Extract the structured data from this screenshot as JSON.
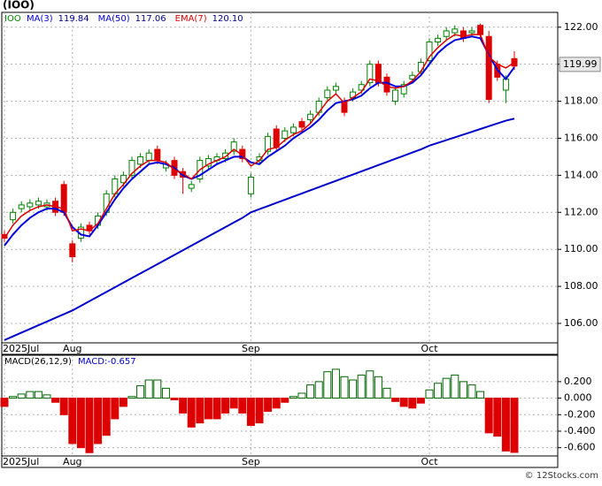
{
  "chart_data": [
    {
      "type": "candlestick",
      "title": "(IOO)",
      "symbol": "IOO",
      "categories": [
        "2025Jul",
        null,
        null,
        null,
        null,
        null,
        null,
        null,
        "Aug",
        null,
        null,
        null,
        null,
        null,
        null,
        null,
        null,
        null,
        null,
        null,
        null,
        null,
        null,
        null,
        null,
        null,
        null,
        null,
        null,
        "Sep",
        null,
        null,
        null,
        null,
        null,
        null,
        null,
        null,
        null,
        null,
        null,
        null,
        null,
        null,
        null,
        null,
        null,
        null,
        null,
        null,
        "Oct",
        null,
        null,
        null,
        null,
        null,
        null,
        null,
        null,
        null,
        null
      ],
      "open": [
        110.8,
        111.6,
        112.2,
        112.3,
        112.4,
        112.3,
        112.6,
        113.5,
        110.3,
        110.6,
        111.3,
        111.3,
        112.0,
        113.0,
        113.6,
        114.0,
        114.6,
        114.8,
        115.4,
        114.4,
        114.8,
        114.2,
        113.3,
        113.8,
        114.5,
        114.8,
        114.9,
        115.3,
        115.4,
        113.0,
        114.8,
        115.3,
        116.5,
        116.0,
        116.3,
        116.9,
        117.0,
        117.4,
        118.2,
        118.6,
        118.0,
        118.2,
        118.6,
        119.0,
        120.0,
        119.3,
        118.0,
        118.4,
        119.2,
        119.6,
        120.2,
        121.2,
        121.5,
        121.7,
        121.8,
        121.7,
        122.1,
        121.5,
        120.0,
        118.6,
        120.3
      ],
      "high": [
        111.0,
        112.2,
        112.6,
        112.7,
        112.8,
        112.7,
        112.8,
        113.7,
        110.5,
        111.4,
        111.5,
        112.0,
        113.2,
        114.0,
        114.2,
        115.0,
        115.2,
        115.4,
        115.6,
        114.8,
        115.0,
        114.4,
        113.7,
        115.0,
        115.1,
        115.2,
        115.4,
        116.0,
        115.6,
        114.1,
        115.2,
        116.3,
        116.7,
        116.6,
        116.8,
        117.1,
        117.5,
        118.2,
        118.8,
        119.0,
        118.2,
        118.7,
        119.1,
        120.2,
        120.2,
        119.5,
        118.8,
        119.1,
        119.6,
        120.3,
        121.4,
        121.6,
        122.0,
        122.1,
        122.0,
        122.0,
        122.2,
        121.8,
        120.2,
        119.4,
        120.7
      ],
      "low": [
        110.4,
        111.4,
        112.0,
        112.1,
        112.2,
        112.1,
        111.8,
        111.8,
        109.3,
        110.4,
        110.8,
        111.1,
        111.8,
        112.8,
        113.4,
        113.8,
        114.4,
        114.6,
        114.6,
        114.2,
        113.8,
        113.0,
        113.1,
        113.6,
        114.3,
        114.6,
        114.7,
        115.1,
        114.7,
        112.8,
        114.6,
        115.1,
        115.3,
        115.8,
        116.1,
        116.4,
        116.8,
        117.2,
        118.0,
        118.4,
        117.2,
        118.0,
        118.4,
        118.8,
        118.8,
        118.3,
        117.8,
        118.2,
        119.0,
        119.4,
        120.0,
        121.0,
        121.3,
        121.5,
        121.2,
        121.5,
        121.4,
        117.9,
        119.1,
        117.9,
        119.7
      ],
      "close": [
        110.6,
        112.0,
        112.4,
        112.5,
        112.6,
        112.5,
        112.0,
        112.0,
        109.6,
        111.2,
        111.0,
        111.8,
        113.0,
        113.8,
        114.0,
        114.8,
        115.0,
        115.2,
        114.8,
        114.6,
        114.0,
        113.9,
        113.5,
        114.8,
        114.9,
        115.0,
        115.2,
        115.8,
        114.9,
        113.9,
        115.0,
        116.1,
        115.5,
        116.4,
        116.6,
        116.6,
        117.3,
        118.0,
        118.6,
        118.8,
        117.4,
        118.5,
        118.9,
        120.0,
        119.0,
        118.5,
        118.6,
        118.9,
        119.4,
        120.1,
        121.2,
        121.4,
        121.8,
        121.9,
        121.4,
        121.8,
        121.6,
        118.1,
        119.3,
        119.2,
        119.9
      ],
      "up_color": "#008000",
      "down_color": "#dd0000",
      "series": [
        {
          "name": "MA(3)",
          "legend_label": "119.84",
          "color": "#0000dd",
          "values": [
            110.2,
            110.8,
            111.3,
            111.7,
            112.0,
            112.2,
            112.2,
            112.0,
            111.2,
            110.8,
            110.7,
            111.3,
            112.0,
            112.7,
            113.3,
            113.8,
            114.2,
            114.6,
            114.7,
            114.6,
            114.4,
            114.0,
            113.8,
            114.0,
            114.3,
            114.6,
            114.8,
            115.0,
            115.0,
            114.7,
            114.6,
            115.0,
            115.3,
            115.6,
            116.0,
            116.3,
            116.6,
            117.0,
            117.5,
            117.9,
            118.0,
            118.1,
            118.3,
            118.7,
            119.0,
            119.0,
            118.8,
            118.8,
            119.0,
            119.4,
            120.0,
            120.6,
            121.0,
            121.3,
            121.4,
            121.5,
            121.4,
            120.5,
            119.7,
            119.2,
            119.84
          ]
        },
        {
          "name": "MA(50)",
          "legend_label": "117.06",
          "color": "#0000cc",
          "values": [
            105.1,
            105.3,
            105.5,
            105.7,
            105.9,
            106.1,
            106.3,
            106.5,
            106.7,
            106.95,
            107.2,
            107.45,
            107.7,
            107.95,
            108.2,
            108.45,
            108.7,
            108.95,
            109.2,
            109.45,
            109.7,
            109.95,
            110.2,
            110.45,
            110.7,
            110.95,
            111.2,
            111.45,
            111.7,
            112.0,
            112.17,
            112.34,
            112.51,
            112.68,
            112.85,
            113.02,
            113.19,
            113.36,
            113.53,
            113.7,
            113.87,
            114.04,
            114.21,
            114.38,
            114.55,
            114.72,
            114.89,
            115.06,
            115.23,
            115.4,
            115.6,
            115.75,
            115.9,
            116.05,
            116.2,
            116.35,
            116.5,
            116.65,
            116.8,
            116.95,
            117.06
          ]
        },
        {
          "name": "EMA(7)",
          "legend_label": "120.10",
          "color": "#dd0000",
          "values": [
            110.6,
            111.3,
            111.8,
            112.1,
            112.3,
            112.4,
            112.3,
            112.2,
            111.0,
            111.1,
            111.0,
            111.4,
            112.2,
            113.0,
            113.5,
            114.1,
            114.5,
            114.8,
            114.8,
            114.7,
            114.3,
            114.1,
            113.8,
            114.3,
            114.6,
            114.8,
            115.0,
            115.4,
            115.1,
            114.5,
            114.8,
            115.4,
            115.5,
            115.9,
            116.2,
            116.4,
            116.8,
            117.4,
            118.0,
            118.4,
            117.9,
            118.2,
            118.5,
            119.2,
            119.1,
            118.8,
            118.7,
            118.8,
            119.1,
            119.6,
            120.4,
            120.9,
            121.3,
            121.6,
            121.5,
            121.6,
            121.6,
            120.4,
            120.0,
            119.8,
            120.1
          ]
        }
      ],
      "last_price": 119.99,
      "ylim": [
        104.95,
        122.8
      ],
      "yticks": [
        {
          "value": 106,
          "label": "106.00"
        },
        {
          "value": 108,
          "label": "108.00"
        },
        {
          "value": 110,
          "label": "110.00"
        },
        {
          "value": 112,
          "label": "112.00"
        },
        {
          "value": 114,
          "label": "114.00"
        },
        {
          "value": 116,
          "label": "116.00"
        },
        {
          "value": 118,
          "label": "118.00"
        },
        {
          "value": 120,
          "label": "120.00"
        },
        {
          "value": 122,
          "label": "122.00"
        }
      ],
      "grid": true
    },
    {
      "type": "bar",
      "title": "MACD(26,12,9)",
      "legend": "MACD:-0.657",
      "categories": [
        "2025Jul",
        null,
        null,
        null,
        null,
        null,
        null,
        null,
        "Aug",
        null,
        null,
        null,
        null,
        null,
        null,
        null,
        null,
        null,
        null,
        null,
        null,
        null,
        null,
        null,
        null,
        null,
        null,
        null,
        null,
        "Sep",
        null,
        null,
        null,
        null,
        null,
        null,
        null,
        null,
        null,
        null,
        null,
        null,
        null,
        null,
        null,
        null,
        null,
        null,
        null,
        null,
        "Oct",
        null,
        null,
        null,
        null,
        null,
        null,
        null,
        null,
        null,
        null
      ],
      "values": [
        -0.1,
        0.02,
        0.05,
        0.08,
        0.08,
        0.04,
        -0.05,
        -0.2,
        -0.55,
        -0.6,
        -0.66,
        -0.55,
        -0.45,
        -0.25,
        -0.1,
        0.02,
        0.15,
        0.22,
        0.22,
        0.12,
        -0.02,
        -0.18,
        -0.35,
        -0.3,
        -0.25,
        -0.25,
        -0.18,
        -0.12,
        -0.18,
        -0.33,
        -0.3,
        -0.16,
        -0.12,
        -0.05,
        0.02,
        0.06,
        0.16,
        0.2,
        0.32,
        0.35,
        0.26,
        0.22,
        0.28,
        0.33,
        0.26,
        0.12,
        -0.04,
        -0.1,
        -0.12,
        -0.06,
        0.1,
        0.18,
        0.24,
        0.28,
        0.2,
        0.16,
        0.08,
        -0.42,
        -0.46,
        -0.64,
        -0.657
      ],
      "up_color": "#006400",
      "down_color": "#dd0000",
      "ylim": [
        -0.7,
        0.52
      ],
      "yticks": [
        {
          "value": -0.6,
          "label": "-0.600"
        },
        {
          "value": -0.4,
          "label": "-0.400"
        },
        {
          "value": -0.2,
          "label": "-0.200"
        },
        {
          "value": 0,
          "label": "0.000"
        },
        {
          "value": 0.2,
          "label": "0.200"
        }
      ],
      "grid": true
    }
  ],
  "footer": "© 12Stocks.com"
}
